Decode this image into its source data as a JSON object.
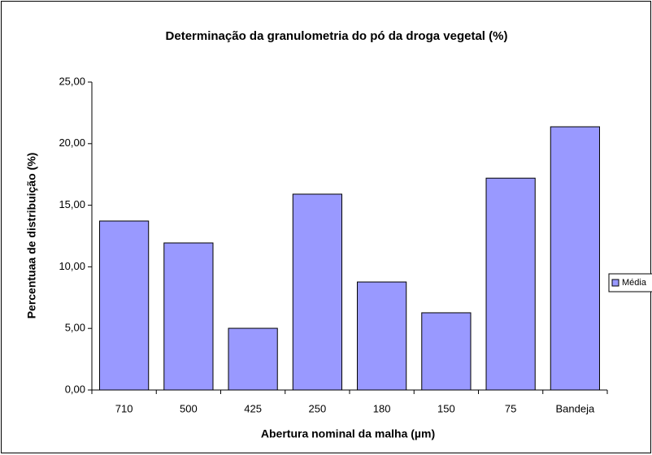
{
  "chart_data": {
    "type": "bar",
    "title": "Determinação da granulometria do pó da droga vegetal (%)",
    "x_label": "Abertura nominal da malha (µm)",
    "y_label": "Percentuaa de distribuição (%)",
    "categories": [
      "710",
      "500",
      "425",
      "250",
      "180",
      "150",
      "75",
      "Bandeja"
    ],
    "series": [
      {
        "name": "Média",
        "color": "#9999ff",
        "values": [
          13.72,
          11.94,
          5.01,
          15.9,
          8.77,
          6.27,
          17.2,
          21.37
        ]
      }
    ],
    "ylim": [
      0,
      25
    ],
    "yticks": [
      {
        "value": 0,
        "label": "0,00"
      },
      {
        "value": 5,
        "label": "5,00"
      },
      {
        "value": 10,
        "label": "10,00"
      },
      {
        "value": 15,
        "label": "15,00"
      },
      {
        "value": 20,
        "label": "20,00"
      },
      {
        "value": 25,
        "label": "25,00"
      }
    ],
    "grid": false,
    "legend": "right"
  }
}
